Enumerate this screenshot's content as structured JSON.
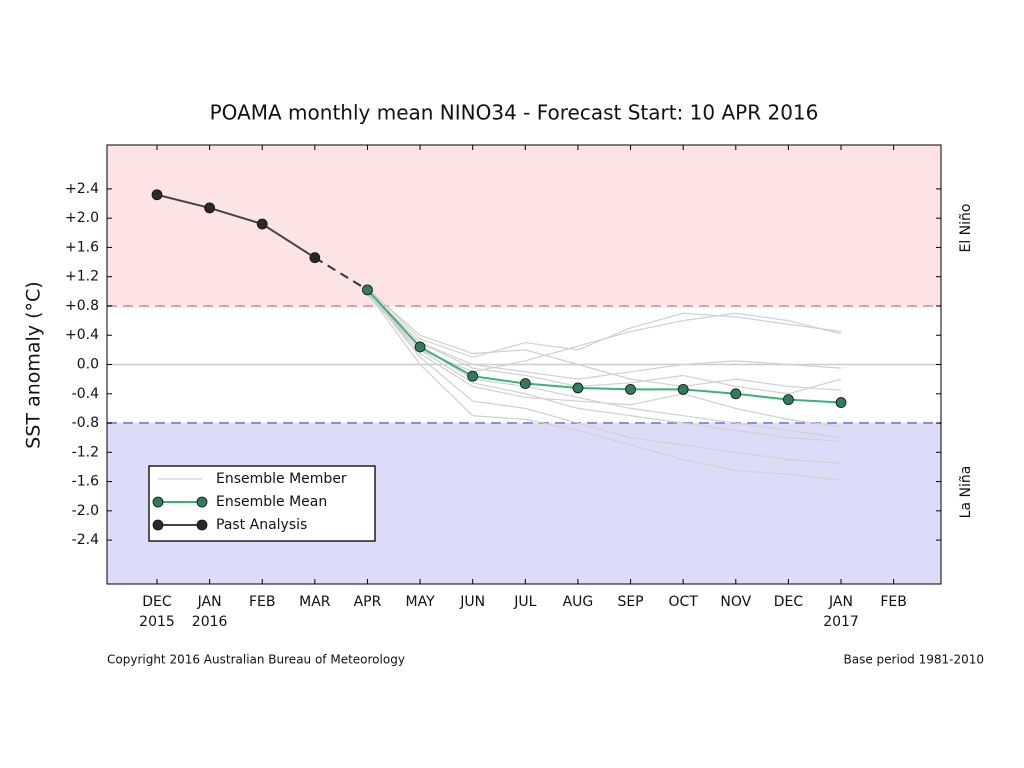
{
  "chart_data": {
    "type": "line",
    "title": "POAMA monthly mean NINO34 - Forecast Start: 10 APR 2016",
    "y_label": "SST anomaly (°C)",
    "categories": [
      "DEC",
      "JAN",
      "FEB",
      "MAR",
      "APR",
      "MAY",
      "JUN",
      "JUL",
      "AUG",
      "SEP",
      "OCT",
      "NOV",
      "DEC",
      "JAN",
      "FEB"
    ],
    "category_years": [
      "2015",
      "2016",
      null,
      null,
      null,
      null,
      null,
      null,
      null,
      null,
      null,
      null,
      null,
      "2017",
      null
    ],
    "ylim": [
      -3.0,
      3.0
    ],
    "yticks": [
      {
        "value": 2.4,
        "label": "+2.4"
      },
      {
        "value": 2.0,
        "label": "+2.0"
      },
      {
        "value": 1.6,
        "label": "+1.6"
      },
      {
        "value": 1.2,
        "label": "+1.2"
      },
      {
        "value": 0.8,
        "label": "+0.8"
      },
      {
        "value": 0.4,
        "label": "+0.4"
      },
      {
        "value": 0.0,
        "label": "0.0"
      },
      {
        "value": -0.4,
        "label": "-0.4"
      },
      {
        "value": -0.8,
        "label": "-0.8"
      },
      {
        "value": -1.2,
        "label": "-1.2"
      },
      {
        "value": -1.6,
        "label": "-1.6"
      },
      {
        "value": -2.0,
        "label": "-2.0"
      },
      {
        "value": -2.4,
        "label": "-2.4"
      }
    ],
    "regions": [
      {
        "label": "El Niño",
        "from": 0.8,
        "to": 3.0,
        "color": "#fde4e4",
        "line_color": "#e8a0a0"
      },
      {
        "label": "La Niña",
        "from": -3.0,
        "to": -0.8,
        "color": "#dcdcf8",
        "line_color": "#9090d8"
      }
    ],
    "series": [
      {
        "name": "Ensemble Member",
        "color": "#d0d0d0",
        "members": [
          [
            null,
            null,
            null,
            null,
            1.05,
            0.35,
            0.1,
            0.3,
            0.2,
            0.5,
            0.7,
            0.65,
            0.55,
            0.45,
            null
          ],
          [
            null,
            null,
            null,
            null,
            0.95,
            0.2,
            -0.1,
            0.05,
            0.25,
            0.45,
            0.6,
            0.7,
            0.6,
            0.42,
            null
          ],
          [
            null,
            null,
            null,
            null,
            1.0,
            0.1,
            -0.5,
            -0.6,
            -0.8,
            -1.0,
            -1.1,
            -1.2,
            -1.3,
            -1.35,
            null
          ],
          [
            null,
            null,
            null,
            null,
            0.98,
            0.0,
            -0.7,
            -0.75,
            -0.9,
            -1.1,
            -1.3,
            -1.45,
            -1.5,
            -1.58,
            null
          ],
          [
            null,
            null,
            null,
            null,
            1.02,
            0.3,
            0.0,
            -0.1,
            -0.2,
            -0.1,
            0.0,
            0.05,
            0.0,
            -0.05,
            null
          ],
          [
            null,
            null,
            null,
            null,
            1.0,
            0.25,
            -0.2,
            -0.3,
            -0.45,
            -0.6,
            -0.7,
            -0.8,
            -0.9,
            -1.0,
            null
          ],
          [
            null,
            null,
            null,
            null,
            1.03,
            0.4,
            0.15,
            0.2,
            0.0,
            -0.2,
            -0.3,
            -0.2,
            -0.3,
            -0.35,
            null
          ],
          [
            null,
            null,
            null,
            null,
            0.97,
            0.15,
            -0.3,
            -0.45,
            -0.5,
            -0.55,
            -0.4,
            -0.6,
            -0.75,
            -0.85,
            null
          ],
          [
            null,
            null,
            null,
            null,
            1.01,
            0.3,
            -0.05,
            -0.15,
            -0.3,
            -0.25,
            -0.15,
            -0.3,
            -0.4,
            -0.2,
            null
          ],
          [
            null,
            null,
            null,
            null,
            0.99,
            0.2,
            -0.25,
            -0.4,
            -0.6,
            -0.7,
            -0.8,
            -0.9,
            -1.0,
            -1.05,
            null
          ]
        ]
      },
      {
        "name": "Ensemble Mean",
        "color": "#3cb371",
        "marker_color": "#2e7d5b",
        "values": [
          null,
          null,
          null,
          null,
          1.02,
          0.24,
          -0.16,
          -0.26,
          -0.32,
          -0.34,
          -0.34,
          -0.4,
          -0.48,
          -0.52,
          null
        ]
      },
      {
        "name": "Past Analysis",
        "color": "#444444",
        "marker_color": "#2a2a2a",
        "values": [
          2.32,
          2.14,
          1.92,
          1.46,
          null,
          null,
          null,
          null,
          null,
          null,
          null,
          null,
          null,
          null,
          null
        ]
      }
    ],
    "footer_left": "Copyright 2016 Australian Bureau of Meteorology",
    "footer_right": "Base period 1981-2010"
  }
}
